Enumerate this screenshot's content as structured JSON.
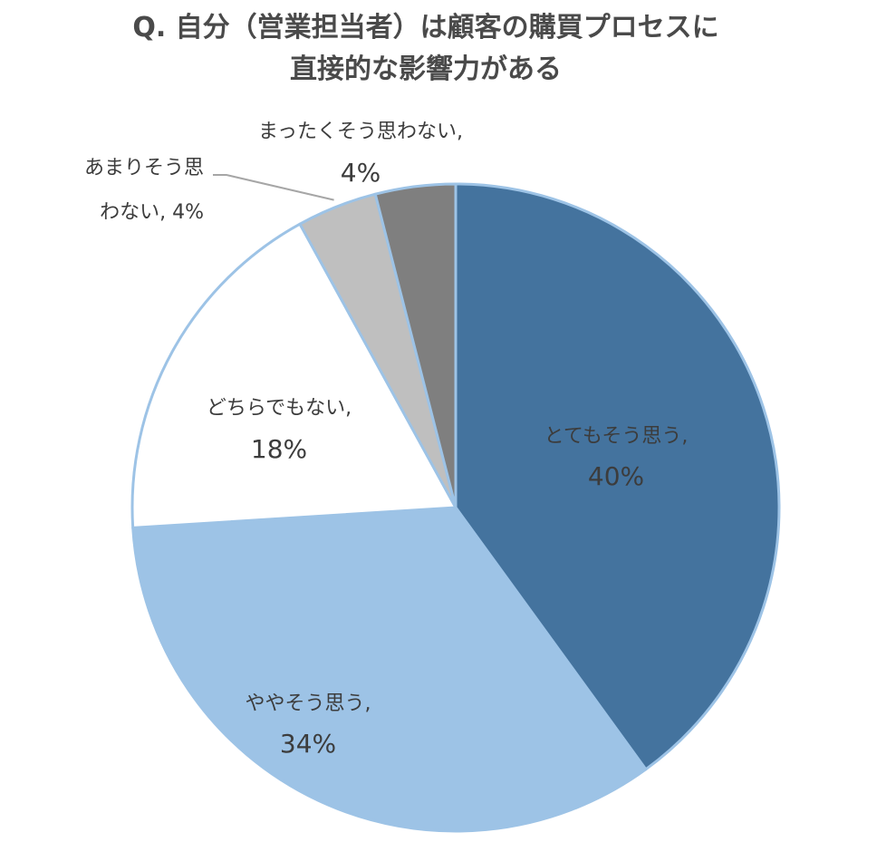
{
  "chart_data": {
    "type": "pie",
    "title_lines": [
      "Q. 自分（営業担当者）は顧客の購買プロセスに",
      "直接的な影響力がある"
    ],
    "start": "12 o'clock",
    "direction": "clockwise",
    "slices": [
      {
        "label": "とてもそう思う,",
        "percent_label": "40%",
        "value": 40,
        "color": "#44739e"
      },
      {
        "label": "ややそう思う,",
        "percent_label": "34%",
        "value": 34,
        "color": "#9dc3e6"
      },
      {
        "label": "どちらでもない,",
        "percent_label": "18%",
        "value": 18,
        "color": "#ffffff"
      },
      {
        "label": "あまりそう思わない,",
        "percent_label": "4%",
        "value": 4,
        "color": "#bfbfbf"
      },
      {
        "label": "まったくそう思わない,",
        "percent_label": "4%",
        "value": 4,
        "color": "#7f7f7f"
      }
    ],
    "label_lines": {
      "slice_3": [
        "あまりそう思",
        "わない, 4%"
      ]
    },
    "slice_border_color": "#9dc3e6",
    "leader_line_color": "#a6a6a6",
    "legend": "none"
  }
}
